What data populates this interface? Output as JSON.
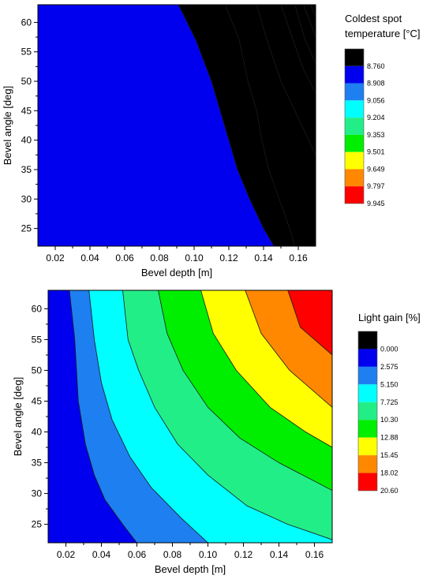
{
  "chart_data": [
    {
      "type": "contour",
      "xlabel": "Bevel depth [m]",
      "ylabel": "Bevel angle [deg]",
      "xlim": [
        0.01,
        0.17
      ],
      "ylim": [
        22,
        63
      ],
      "xticks": [
        "0.02",
        "0.04",
        "0.06",
        "0.08",
        "0.10",
        "0.12",
        "0.14",
        "0.16"
      ],
      "yticks": [
        "25",
        "30",
        "35",
        "40",
        "45",
        "50",
        "55",
        "60"
      ],
      "legend_title": [
        "Coldest spot",
        "temperature [°C]"
      ],
      "levels": [
        "8.760",
        "8.908",
        "9.056",
        "9.204",
        "9.353",
        "9.501",
        "9.649",
        "9.797",
        "9.945"
      ],
      "level_colors": [
        "#000000",
        "#0000ee",
        "#1e7ff0",
        "#00ffff",
        "#22ee88",
        "#00ee00",
        "#ffff00",
        "#ff8800",
        "#ff0000"
      ],
      "contour_lines": [
        {
          "level": "9.797",
          "points": [
            [
              0.091,
              63
            ],
            [
              0.101,
              57
            ],
            [
              0.11,
              50
            ],
            [
              0.115,
              45
            ],
            [
              0.12,
              40
            ],
            [
              0.125,
              35
            ],
            [
              0.132,
              30
            ],
            [
              0.14,
              25
            ],
            [
              0.146,
              22
            ]
          ]
        },
        {
          "level": "9.649",
          "points": [
            [
              0.118,
              63
            ],
            [
              0.126,
              57
            ],
            [
              0.131,
              50
            ],
            [
              0.136,
              45
            ],
            [
              0.139,
              40
            ],
            [
              0.143,
              35
            ],
            [
              0.149,
              30
            ],
            [
              0.155,
              25
            ],
            [
              0.158,
              22
            ]
          ]
        },
        {
          "level": "9.501",
          "points": [
            [
              0.136,
              63
            ],
            [
              0.142,
              57
            ],
            [
              0.15,
              50
            ],
            [
              0.158,
              45
            ],
            [
              0.166,
              40
            ],
            [
              0.17,
              37.5
            ]
          ]
        },
        {
          "level": "9.353",
          "points": [
            [
              0.15,
              63
            ],
            [
              0.157,
              57
            ],
            [
              0.163,
              52
            ],
            [
              0.17,
              48
            ]
          ]
        },
        {
          "level": "9.204",
          "points": [
            [
              0.158,
              63
            ],
            [
              0.164,
              57
            ],
            [
              0.17,
              53
            ]
          ]
        },
        {
          "level": "9.056",
          "points": [
            [
              0.163,
              63
            ],
            [
              0.167,
              60
            ],
            [
              0.17,
              57.5
            ]
          ]
        },
        {
          "level": "8.908",
          "points": [
            [
              0.167,
              63
            ],
            [
              0.17,
              61
            ]
          ]
        }
      ]
    },
    {
      "type": "contour",
      "xlabel": "Bevel depth [m]",
      "ylabel": "Bevel angle [deg]",
      "xlim": [
        0.01,
        0.17
      ],
      "ylim": [
        22,
        63
      ],
      "xticks": [
        "0.02",
        "0.04",
        "0.06",
        "0.08",
        "0.10",
        "0.12",
        "0.14",
        "0.16"
      ],
      "yticks": [
        "25",
        "30",
        "35",
        "40",
        "45",
        "50",
        "55",
        "60"
      ],
      "legend_title": [
        "Light gain [%]"
      ],
      "levels": [
        "0.000",
        "2.575",
        "5.150",
        "7.725",
        "10.30",
        "12.88",
        "15.45",
        "18.02",
        "20.60"
      ],
      "level_colors": [
        "#000000",
        "#0000ee",
        "#1e7ff0",
        "#00ffff",
        "#22ee88",
        "#00ee00",
        "#ffff00",
        "#ff8800",
        "#ff0000"
      ],
      "contour_lines": [
        {
          "level": "2.575",
          "points": [
            [
              0.022,
              63
            ],
            [
              0.025,
              55
            ],
            [
              0.027,
              45
            ],
            [
              0.031,
              38
            ],
            [
              0.036,
              33
            ],
            [
              0.042,
              29
            ],
            [
              0.052,
              25
            ],
            [
              0.06,
              22
            ]
          ]
        },
        {
          "level": "5.150",
          "points": [
            [
              0.033,
              63
            ],
            [
              0.036,
              55
            ],
            [
              0.04,
              48
            ],
            [
              0.046,
              42
            ],
            [
              0.056,
              36
            ],
            [
              0.068,
              31
            ],
            [
              0.085,
              26
            ],
            [
              0.1,
              22
            ]
          ]
        },
        {
          "level": "7.725",
          "points": [
            [
              0.052,
              63
            ],
            [
              0.055,
              55
            ],
            [
              0.061,
              50
            ],
            [
              0.07,
              44
            ],
            [
              0.083,
              38
            ],
            [
              0.1,
              33
            ],
            [
              0.122,
              28
            ],
            [
              0.145,
              25
            ],
            [
              0.17,
              22.5
            ]
          ]
        },
        {
          "level": "10.30",
          "points": [
            [
              0.072,
              63
            ],
            [
              0.077,
              56
            ],
            [
              0.086,
              50
            ],
            [
              0.1,
              44
            ],
            [
              0.118,
              39
            ],
            [
              0.14,
              35
            ],
            [
              0.17,
              30.5
            ]
          ]
        },
        {
          "level": "12.88",
          "points": [
            [
              0.096,
              63
            ],
            [
              0.103,
              56
            ],
            [
              0.116,
              50
            ],
            [
              0.135,
              44
            ],
            [
              0.155,
              40
            ],
            [
              0.17,
              37.5
            ]
          ]
        },
        {
          "level": "15.45",
          "points": [
            [
              0.121,
              63
            ],
            [
              0.13,
              56
            ],
            [
              0.146,
              50
            ],
            [
              0.17,
              44
            ]
          ]
        },
        {
          "level": "18.02",
          "points": [
            [
              0.145,
              63
            ],
            [
              0.152,
              57
            ],
            [
              0.17,
              52.5
            ]
          ]
        }
      ]
    }
  ]
}
